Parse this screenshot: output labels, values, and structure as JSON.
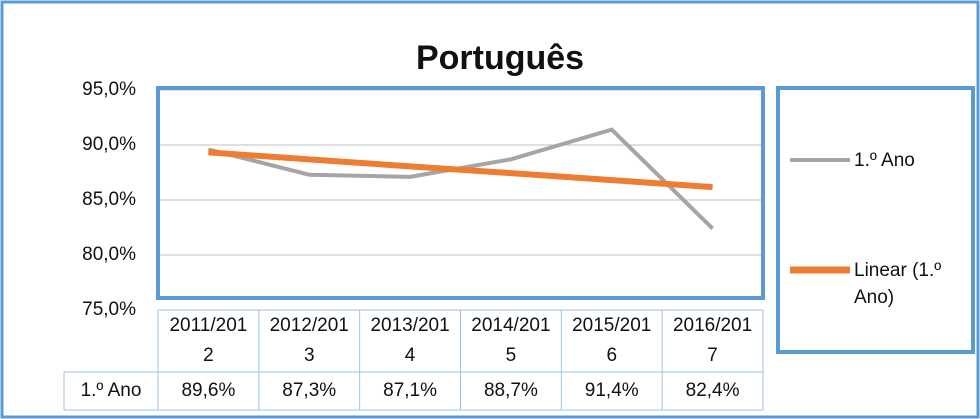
{
  "chart_data": {
    "type": "line",
    "title": "Português",
    "categories": [
      "2011/2012",
      "2012/2013",
      "2013/2014",
      "2014/2015",
      "2015/2016",
      "2016/2017"
    ],
    "series": [
      {
        "name": "1.º Ano",
        "color": "#a5a5a5",
        "values": [
          89.6,
          87.3,
          87.1,
          88.7,
          91.4,
          82.4
        ],
        "value_labels": [
          "89,6%",
          "87,3%",
          "87,1%",
          "88,7%",
          "91,4%",
          "82,4%"
        ]
      },
      {
        "name": "Linear (1.º Ano)",
        "color": "#ed7d31",
        "values": [
          89.33,
          88.69,
          88.06,
          87.44,
          86.81,
          86.17
        ]
      }
    ],
    "ylim": [
      75,
      95
    ],
    "yticks": [
      {
        "value": 75,
        "label": "75,0%"
      },
      {
        "value": 80,
        "label": "80,0%"
      },
      {
        "value": 85,
        "label": "85,0%"
      },
      {
        "value": 90,
        "label": "90,0%"
      },
      {
        "value": 95,
        "label": "95,0%"
      }
    ],
    "grid": true,
    "legend": "right"
  }
}
